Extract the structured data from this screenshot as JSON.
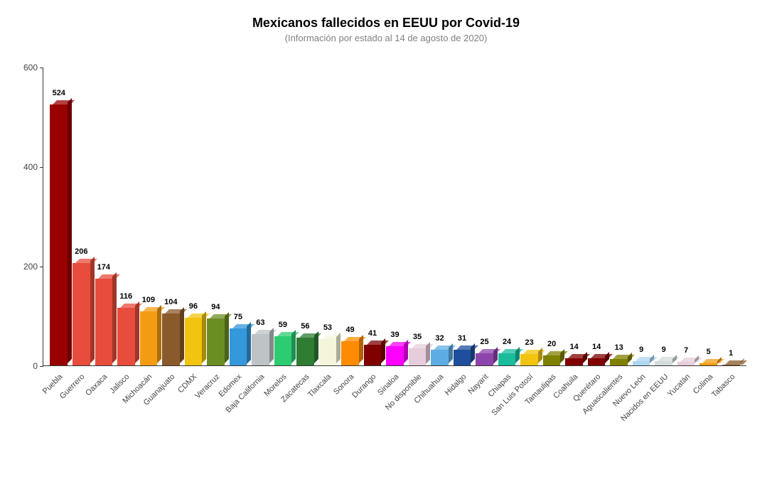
{
  "chart": {
    "type": "bar-3d",
    "title": "Mexicanos fallecidos en EEUU por Covid-19",
    "title_fontsize": 18,
    "subtitle": "(Información por estado al 14 de agosto de 2020)",
    "subtitle_fontsize": 13,
    "subtitle_color": "#808080",
    "background_color": "#ffffff",
    "axis_color": "#333333",
    "ylim": [
      0,
      600
    ],
    "ytick_step": 200,
    "yticks": [
      0,
      200,
      400,
      600
    ],
    "bar_width_ratio": 0.78,
    "xlabel_rotation": -45,
    "label_fontsize": 11,
    "value_label_fontsize": 11,
    "value_label_fontweight": "bold",
    "categories": [
      "Puebla",
      "Guerrero",
      "Oaxaca",
      "Jalisco",
      "Michoacán",
      "Guanajuato",
      "CDMX",
      "Veracruz",
      "Edomex",
      "Baja California",
      "Morelos",
      "Zacatecas",
      "Tlaxcala",
      "Sonora",
      "Durango",
      "Sinaloa",
      "No disponible",
      "Chihuahua",
      "Hidalgo",
      "Nayarit",
      "Chiapas",
      "San Luis Potosí",
      "Tamaulipas",
      "Coahuila",
      "Querétaro",
      "Aguascalientes",
      "Nuevo León",
      "Nacidos en EEUU",
      "Yucatán",
      "Colima",
      "Tabasco"
    ],
    "values": [
      524,
      206,
      174,
      116,
      109,
      104,
      96,
      94,
      75,
      63,
      59,
      56,
      53,
      49,
      41,
      39,
      35,
      32,
      31,
      25,
      24,
      23,
      20,
      14,
      14,
      13,
      9,
      9,
      7,
      5,
      1
    ],
    "bar_colors": [
      "#990000",
      "#e74c3c",
      "#e74c3c",
      "#e74c3c",
      "#f39c12",
      "#8b5a2b",
      "#f1c40f",
      "#6b8e23",
      "#3498db",
      "#bdc3c7",
      "#2ecc71",
      "#2e7d32",
      "#f5f5dc",
      "#ff8c00",
      "#800000",
      "#ff00ff",
      "#e6cddb",
      "#5dade2",
      "#1f4e9c",
      "#8e44ad",
      "#1abc9c",
      "#f1c40f",
      "#808000",
      "#800000",
      "#800000",
      "#808000",
      "#aed6f1",
      "#d5dbdb",
      "#e6cddb",
      "#f39c12",
      "#8b5a2b"
    ],
    "bar_top_shade": 0.85,
    "bar_side_shade": 0.7
  }
}
